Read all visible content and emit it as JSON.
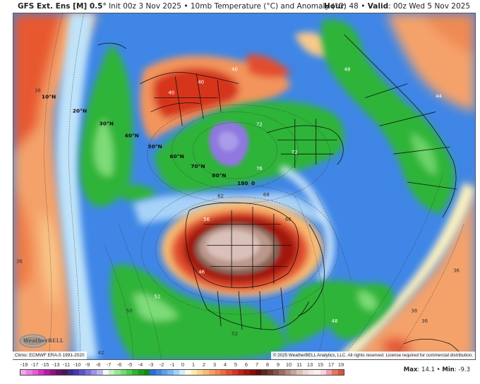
{
  "header": {
    "model": "GFS Ext.  Ens [M] 0.5",
    "degree": "°",
    "init": " Init 00z 3 Nov 2025",
    "sep": " • ",
    "product": "10mb Temperature (°C) and Anomaly (°C)",
    "hour_label": "Hour",
    "hour_value": ": 48",
    "valid_label": "Valid",
    "valid_value": ": 00z Wed 5 Nov 2025"
  },
  "map": {
    "projection": "polar-stereographic-north",
    "latitude_labels": [
      "10°N",
      "20°N",
      "30°N",
      "40°N",
      "50°N",
      "60°N",
      "70°N",
      "80°N"
    ],
    "longitude_labels": [
      "180",
      "0"
    ],
    "contour_labels": [
      "40",
      "40",
      "40",
      "38",
      "36",
      "36",
      "38",
      "36",
      "42",
      "48",
      "44",
      "48",
      "50",
      "52",
      "52",
      "46",
      "56",
      "66",
      "72",
      "76",
      "72",
      "68",
      "62"
    ]
  },
  "footer": {
    "climo": "Climo: ECMWF ERA-5 1991-2020",
    "copyright": "© 2025 WeatherBELL Analytics, LLC. All rights reserved. License required for commercial distribution.",
    "logo": "WeatherBELL",
    "max_label": "Max",
    "max_value": ": 14.1",
    "min_label": "Min",
    "min_value": ": -9.3"
  },
  "colorbar": {
    "unit": "°C anomaly",
    "labels": [
      "-19",
      "-17",
      "-15",
      "-13",
      "-11",
      "-10",
      "-9",
      "-8",
      "-7",
      "-6",
      "-5",
      "-4",
      "-3",
      "-2",
      "-1",
      "0",
      "1",
      "2",
      "3",
      "4",
      "5",
      "6",
      "7",
      "8",
      "9",
      "10",
      "11",
      "13",
      "15",
      "17",
      "19"
    ],
    "colors": [
      "#f6a6ea",
      "#ee7fe2",
      "#e85ad8",
      "#d832c8",
      "#b81aa8",
      "#8f1283",
      "#6a0f66",
      "#4a1556",
      "#3a2a8f",
      "#4538b4",
      "#5a55cf",
      "#7a72da",
      "#9c93e4",
      "#bdb5ee",
      "#f0fbf2",
      "#c4f2c0",
      "#99e894",
      "#74dc70",
      "#4fcc4c",
      "#2eb52c",
      "#1b9e1a",
      "#0f8a13",
      "#2a6fd8",
      "#3d86e8",
      "#5aa0ef",
      "#7ab8f4",
      "#a7d2f8",
      "#d6ecfb",
      "#fbfbe8",
      "#fbeeb0",
      "#fbd78a",
      "#f9bc74",
      "#f6a060",
      "#f2864f",
      "#ec6a3f",
      "#e24d2f",
      "#d43522",
      "#bf2316",
      "#a3160e",
      "#861009",
      "#660a06",
      "#5a2a22",
      "#6e3d34",
      "#83544a",
      "#9a6e63",
      "#b28b81",
      "#c8a59b",
      "#dcc0b7",
      "#ecd7cf",
      "#f5e6df",
      "#f9efea",
      "#f5d6dc",
      "#ef9fb2",
      "#e6765e",
      "#d8553f"
    ]
  }
}
